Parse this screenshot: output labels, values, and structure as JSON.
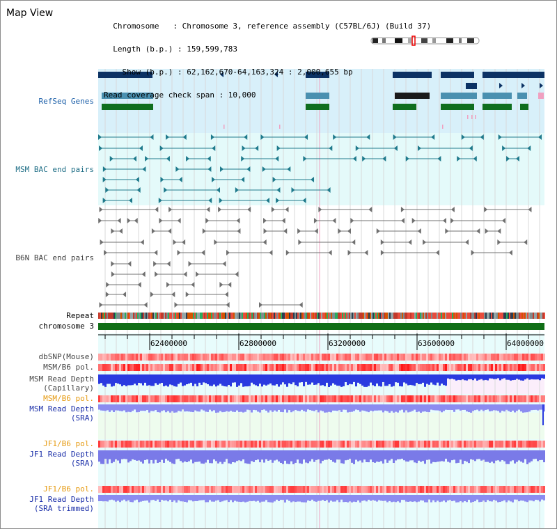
{
  "view_title": "Map View",
  "header": {
    "lines": [
      "  Chromosome   : Chromosome 3, reference assembly (C57BL/6J) (Build 37)",
      "  Length (b.p.) : 159,599,783",
      "    Show (b.p.) : 62,162,670-64,163,324 : 2,000,655 bp",
      "Read coverage check span : 10,000"
    ]
  },
  "tracks": {
    "refseq": {
      "label": "RefSeq Genes"
    },
    "msm_bac": {
      "label": "MSM BAC end pairs"
    },
    "b6n_bac": {
      "label": "B6N BAC end pairs"
    },
    "repeat": {
      "label": "Repeat"
    },
    "chromosome": {
      "label": "chromosome 3"
    },
    "dbsnp": {
      "label": "dbSNP(Mouse)"
    },
    "msm_pol": {
      "label": "MSM/B6 pol."
    },
    "msm_depth_cap": {
      "label1": "MSM Read Depth",
      "label2": "(Capillary)"
    },
    "msm_pol2": {
      "label": "MSM/B6 pol."
    },
    "msm_depth_sra": {
      "label1": "MSM Read Depth",
      "label2": "(SRA)"
    },
    "jf1_pol": {
      "label": "JF1/B6 pol."
    },
    "jf1_depth_sra": {
      "label1": "JF1 Read Depth",
      "label2": "(SRA)"
    },
    "jf1_pol2": {
      "label": "JF1/B6 pol."
    },
    "jf1_depth_trim": {
      "label1": "JF1 Read Depth",
      "label2": "(SRA trimmed)"
    }
  },
  "ruler": {
    "ticks": [
      "62400000",
      "62800000",
      "63200000",
      "63600000",
      "64000000"
    ]
  },
  "colors": {
    "refseq_bg": "#d8f0fa",
    "bac_bg": "#e4fafa",
    "gene_dark": "#0c3264",
    "gene_mid": "#4a90b0",
    "gene_green": "#0f6e1e",
    "msm_bac": "#1f7a8c",
    "b6n_bac": "#707070",
    "chromosome": "#106e16",
    "label_blue": "#1a5ea8",
    "label_navy": "#1a2ea8",
    "label_orange": "#e69a10",
    "label_grey": "#444444"
  }
}
